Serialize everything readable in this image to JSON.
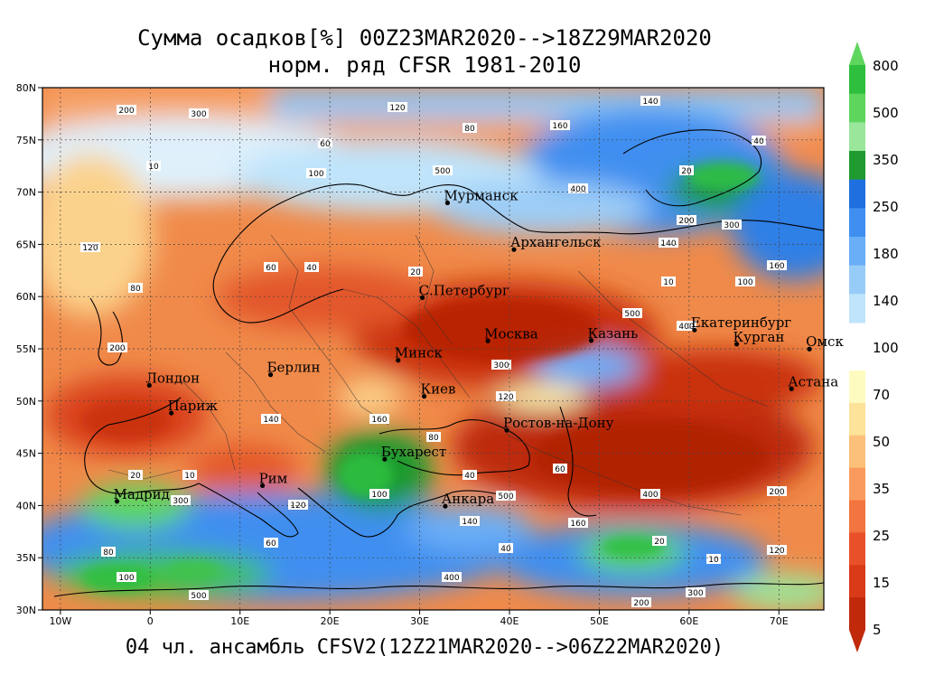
{
  "title_line1": "Сумма осадков[%] 00Z23MAR2020-->18Z29MAR2020",
  "title_line2": "норм. ряд CFSR 1981-2010",
  "footer": "04 чл. ансамбль CFSV2(12Z21MAR2020-->06Z22MAR2020)",
  "map": {
    "lat_ticks": [
      "80N",
      "75N",
      "70N",
      "65N",
      "60N",
      "55N",
      "50N",
      "45N",
      "40N",
      "35N",
      "30N"
    ],
    "lon_ticks": [
      "10W",
      "0",
      "10E",
      "20E",
      "30E",
      "40E",
      "50E",
      "60E",
      "70E"
    ],
    "cities": [
      {
        "name": "Мурманск",
        "lon": 33.1,
        "lat": 68.97
      },
      {
        "name": "Архангельск",
        "lon": 40.5,
        "lat": 64.5
      },
      {
        "name": "С.Петербург",
        "lon": 30.3,
        "lat": 59.9
      },
      {
        "name": "Москва",
        "lon": 37.6,
        "lat": 55.75
      },
      {
        "name": "Казань",
        "lon": 49.1,
        "lat": 55.8
      },
      {
        "name": "Екатеринбург",
        "lon": 60.6,
        "lat": 56.8
      },
      {
        "name": "Курган",
        "lon": 65.3,
        "lat": 55.45
      },
      {
        "name": "Омск",
        "lon": 73.4,
        "lat": 54.98
      },
      {
        "name": "Астана",
        "lon": 71.4,
        "lat": 51.17
      },
      {
        "name": "Минск",
        "lon": 27.6,
        "lat": 53.9
      },
      {
        "name": "Киев",
        "lon": 30.5,
        "lat": 50.45
      },
      {
        "name": "Берлин",
        "lon": 13.4,
        "lat": 52.52
      },
      {
        "name": "Лондон",
        "lon": -0.1,
        "lat": 51.5
      },
      {
        "name": "Париж",
        "lon": 2.35,
        "lat": 48.85
      },
      {
        "name": "Ростов-на-Дону",
        "lon": 39.7,
        "lat": 47.2
      },
      {
        "name": "Бухарест",
        "lon": 26.1,
        "lat": 44.43
      },
      {
        "name": "Рим",
        "lon": 12.5,
        "lat": 41.9
      },
      {
        "name": "Мадрид",
        "lon": -3.7,
        "lat": 40.4
      },
      {
        "name": "Анкара",
        "lon": 32.85,
        "lat": 39.93
      }
    ],
    "contour_labels": [
      "200",
      "300",
      "120",
      "140",
      "160",
      "80",
      "60",
      "40",
      "20",
      "10",
      "100",
      "500",
      "400"
    ]
  },
  "colorbar": {
    "upper_labels": [
      "800",
      "500",
      "350",
      "250",
      "180",
      "140",
      "100"
    ],
    "lower_labels": [
      "70",
      "50",
      "35",
      "25",
      "15",
      "5"
    ],
    "upper_colors": [
      "#2fbf3f",
      "#5ed65e",
      "#9ae69a",
      "#1e9a2e",
      "#1f6fe0",
      "#3f8ff0",
      "#6aaef6",
      "#98ccf8",
      "#bfe4fb"
    ],
    "lower_colors": [
      "#fdfbc0",
      "#fde29a",
      "#fcc07a",
      "#f99a5e",
      "#f2743e",
      "#e8502a",
      "#d93a18",
      "#c02a0a"
    ]
  }
}
